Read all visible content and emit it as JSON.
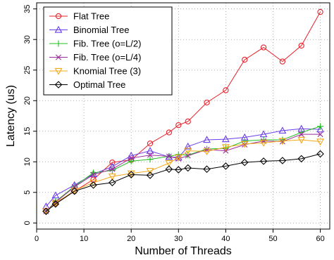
{
  "chart_data": {
    "type": "line",
    "title": "",
    "xlabel": "Number of Threads",
    "ylabel": "Latency (us)",
    "xlim": [
      0,
      62
    ],
    "ylim": [
      -1,
      36
    ],
    "xticks": [
      0,
      10,
      20,
      30,
      40,
      50,
      60
    ],
    "yticks": [
      0,
      5,
      10,
      15,
      20,
      25,
      30,
      35
    ],
    "grid": true,
    "legend_position": "top-left",
    "x": [
      2,
      4,
      8,
      12,
      16,
      20,
      24,
      28,
      30,
      32,
      36,
      40,
      44,
      48,
      52,
      56,
      60
    ],
    "series": [
      {
        "name": "Flat Tree",
        "color": "#e8202a",
        "marker": "circle",
        "values": [
          2.0,
          3.3,
          5.2,
          7.1,
          9.9,
          10.3,
          13.0,
          14.8,
          16.0,
          16.6,
          19.7,
          21.7,
          26.7,
          28.7,
          26.4,
          29.0,
          34.5
        ]
      },
      {
        "name": "Binomial Tree",
        "color": "#6a3de8",
        "marker": "triangle-up",
        "values": [
          2.7,
          4.5,
          6.2,
          8.0,
          9.2,
          11.0,
          11.8,
          10.8,
          10.7,
          12.5,
          13.6,
          13.7,
          14.0,
          14.5,
          15.1,
          15.4,
          15.3
        ]
      },
      {
        "name": "Fib. Tree (o=L/2)",
        "color": "#22c021",
        "marker": "plus",
        "values": [
          1.9,
          3.5,
          6.0,
          8.2,
          8.6,
          10.1,
          10.4,
          10.9,
          11.2,
          11.1,
          12.1,
          12.2,
          13.4,
          13.6,
          13.6,
          14.8,
          15.8
        ]
      },
      {
        "name": "Fib. Tree (o=L/4)",
        "color": "#9b2a9b",
        "marker": "cross",
        "values": [
          1.9,
          3.4,
          5.9,
          7.9,
          8.8,
          10.6,
          11.1,
          10.9,
          10.5,
          11.0,
          12.0,
          11.8,
          12.8,
          13.4,
          13.3,
          14.5,
          14.5
        ]
      },
      {
        "name": "Knomial Tree (3)",
        "color": "#f2a819",
        "marker": "triangle-down",
        "values": [
          1.9,
          3.2,
          5.3,
          6.6,
          7.6,
          8.1,
          8.5,
          9.8,
          10.7,
          11.8,
          11.7,
          12.4,
          12.9,
          13.1,
          13.4,
          13.6,
          13.3
        ]
      },
      {
        "name": "Optimal Tree",
        "color": "#000000",
        "marker": "diamond",
        "values": [
          1.9,
          3.1,
          5.2,
          6.2,
          6.6,
          7.9,
          7.8,
          8.8,
          8.7,
          9.0,
          8.8,
          9.3,
          9.9,
          10.1,
          10.2,
          10.5,
          11.3
        ]
      }
    ]
  }
}
